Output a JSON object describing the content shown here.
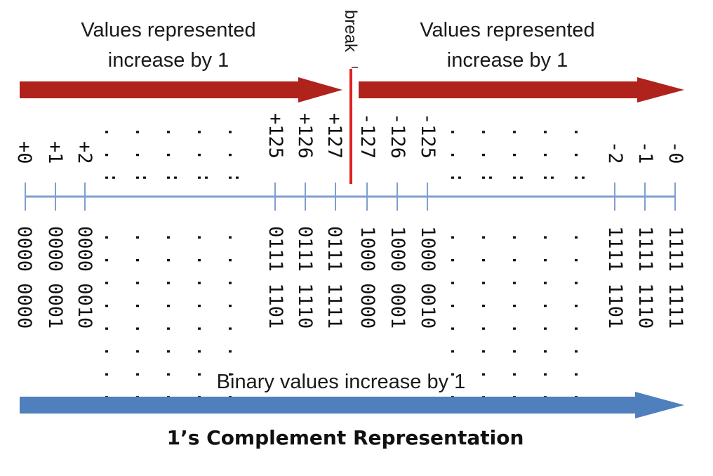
{
  "top_captions": {
    "left": [
      "Values represented",
      "increase by 1"
    ],
    "right": [
      "Values represented",
      "increase by 1"
    ]
  },
  "break_label": "break",
  "bottom_caption": "Binary values increase by 1",
  "title": "1’s Complement Representation",
  "value_labels": [
    "+0",
    "+1",
    "+2",
    "+125",
    "+126",
    "+127",
    "-127",
    "-126",
    "-125",
    "-2",
    "-1",
    "-0"
  ],
  "binary_labels": [
    "0000 0000",
    "0000 0001",
    "0000 0010",
    "0111 1101",
    "0111 1110",
    "0111 1111",
    "1000 0000",
    "1000 0001",
    "1000 0010",
    "1111 1101",
    "1111 1110",
    "1111 1111"
  ],
  "ellipsis_value": ". . :",
  "ellipsis_binary": ". . . . . . . .",
  "colors": {
    "red_arrow": "#b0221c",
    "blue_arrow": "#4f7fbd",
    "axis": "#7f9fcf",
    "break_line": "#e02020"
  }
}
